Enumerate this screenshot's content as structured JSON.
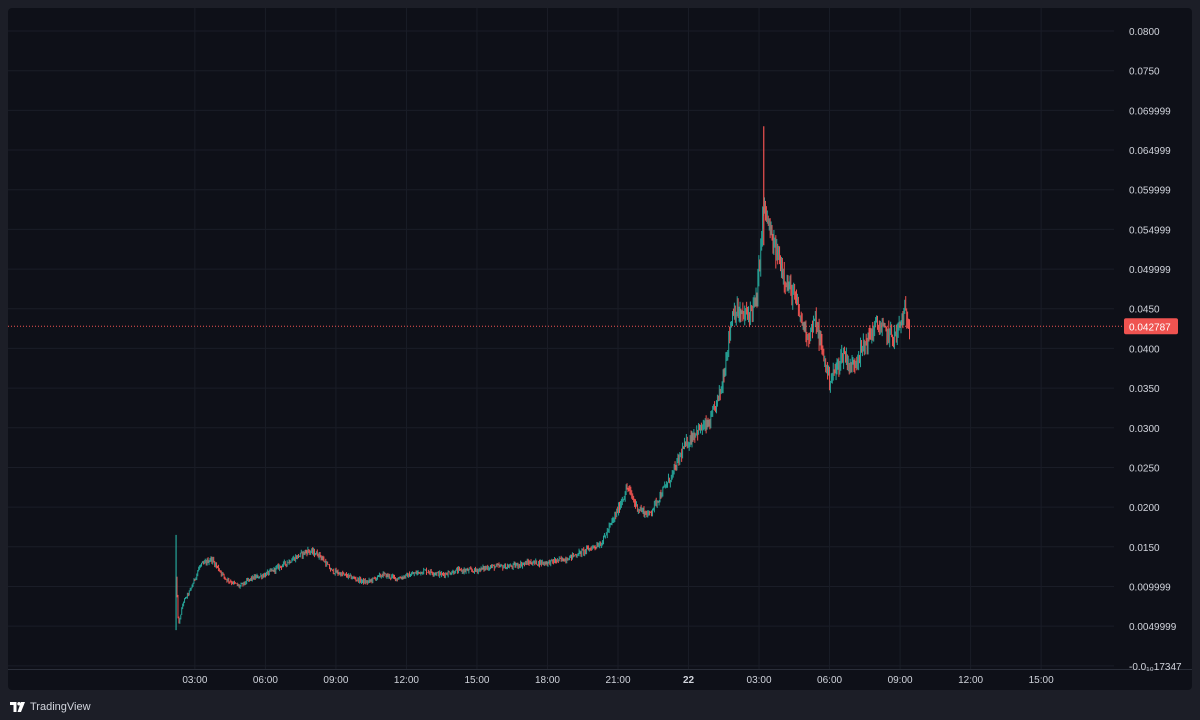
{
  "colors": {
    "background": "#0e1018",
    "outer_background": "#1c1e27",
    "grid": "#1a1d27",
    "up": "#26a69a",
    "down": "#ef5350",
    "price_line": "#ef5350",
    "axis_text": "#d1d4dc"
  },
  "footer": {
    "brand": "TradingView",
    "logo_icon": "tradingview-logo-icon"
  },
  "chart_data": {
    "type": "line",
    "style": "candlestick",
    "title": "",
    "xlabel": "",
    "ylabel": "",
    "y_tick_labels": [
      "0.0800",
      "0.0750",
      "0.069999",
      "0.064999",
      "0.059999",
      "0.054999",
      "0.049999",
      "0.0450",
      "0.0400",
      "0.0350",
      "0.0300",
      "0.0250",
      "0.0200",
      "0.0150",
      "0.009999",
      "0.0049999",
      "-0.0₁₀17347"
    ],
    "y_tick_values": [
      0.08,
      0.075,
      0.07,
      0.065,
      0.06,
      0.055,
      0.05,
      0.045,
      0.04,
      0.035,
      0.03,
      0.025,
      0.02,
      0.015,
      0.01,
      0.005,
      0.0
    ],
    "ylim": [
      -0.0004,
      0.0829
    ],
    "x_tick_labels": [
      "03:00",
      "06:00",
      "09:00",
      "12:00",
      "15:00",
      "18:00",
      "21:00",
      "22",
      "03:00",
      "06:00",
      "09:00",
      "12:00",
      "15:00"
    ],
    "x_tick_bold": [
      false,
      false,
      false,
      false,
      false,
      false,
      false,
      true,
      false,
      false,
      false,
      false,
      false
    ],
    "x_hours": [
      27,
      30,
      33,
      36,
      39,
      42,
      45,
      48,
      51,
      54,
      57,
      60,
      63
    ],
    "xlim_hours": [
      19.05,
      66.1
    ],
    "grid": true,
    "current_price": 0.042787,
    "current_price_label": "0.042787",
    "series": [
      {
        "x_hours": [
          26.2,
          26.3,
          26.5,
          26.8,
          27.2,
          27.7,
          28.3,
          28.9,
          29.4,
          30.0,
          30.6,
          31.2,
          31.8,
          32.3,
          32.8,
          33.3,
          33.8,
          34.3,
          35.0,
          35.6,
          36.2,
          36.8,
          37.5,
          38.2,
          38.9,
          39.6,
          40.4,
          41.2,
          42.0,
          42.8,
          43.6,
          44.3,
          44.9,
          45.4,
          45.8,
          46.3,
          46.8,
          47.3,
          47.8,
          48.3,
          48.9,
          49.4,
          49.9,
          50.3,
          50.6,
          50.9,
          51.2,
          51.6,
          51.9,
          52.2,
          52.5,
          52.8,
          53.1,
          53.4,
          53.7,
          54.0,
          54.3,
          54.6,
          54.9,
          55.3,
          55.7,
          56.0,
          56.4,
          56.8,
          57.2,
          57.4
        ],
        "close": [
          0.011,
          0.005,
          0.008,
          0.0095,
          0.0125,
          0.0135,
          0.011,
          0.01,
          0.011,
          0.0115,
          0.0125,
          0.0135,
          0.0145,
          0.014,
          0.012,
          0.0115,
          0.011,
          0.0105,
          0.0115,
          0.011,
          0.0115,
          0.012,
          0.0115,
          0.012,
          0.012,
          0.0125,
          0.0125,
          0.013,
          0.013,
          0.0135,
          0.0145,
          0.0155,
          0.019,
          0.0225,
          0.02,
          0.019,
          0.0215,
          0.024,
          0.0275,
          0.0295,
          0.0305,
          0.035,
          0.045,
          0.044,
          0.0445,
          0.046,
          0.058,
          0.053,
          0.051,
          0.048,
          0.0465,
          0.0435,
          0.0415,
          0.0435,
          0.0395,
          0.036,
          0.0375,
          0.0395,
          0.0375,
          0.0395,
          0.0415,
          0.043,
          0.042,
          0.0415,
          0.0445,
          0.043
        ]
      }
    ]
  }
}
